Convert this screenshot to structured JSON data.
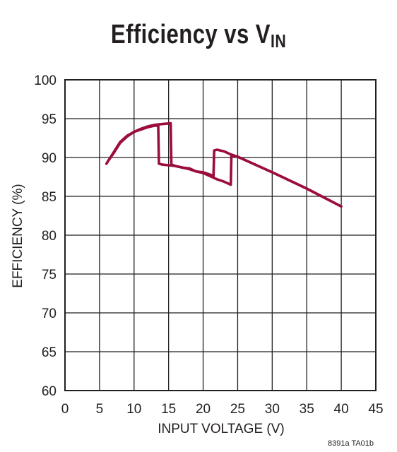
{
  "title_main": "Efficiency vs V",
  "title_subscript": "IN",
  "figure_code": "8391a TA01b",
  "colors": {
    "series": "#9b0d3a",
    "grid": "#231f20",
    "text": "#231f20"
  },
  "chart_data": {
    "type": "line",
    "title": "Efficiency vs VIN",
    "xlabel": "INPUT VOLTAGE (V)",
    "ylabel": "EFFICIENCY (%)",
    "xlim": [
      0,
      45
    ],
    "ylim": [
      60,
      100
    ],
    "xticks": [
      0,
      5,
      10,
      15,
      20,
      25,
      30,
      35,
      40,
      45
    ],
    "yticks": [
      60,
      65,
      70,
      75,
      80,
      85,
      90,
      95,
      100
    ],
    "grid": true,
    "series": [
      {
        "points": [
          [
            6,
            89.2
          ],
          [
            7,
            90.6
          ],
          [
            8,
            92
          ],
          [
            9,
            92.8
          ],
          [
            10,
            93.3
          ],
          [
            11,
            93.6
          ],
          [
            12,
            93.9
          ],
          [
            13,
            94.1
          ],
          [
            13.5,
            94.1
          ],
          [
            13.6,
            89.2
          ],
          [
            14,
            89.1
          ],
          [
            15,
            89
          ],
          [
            16,
            88.9
          ],
          [
            17,
            88.7
          ],
          [
            18,
            88.6
          ],
          [
            19,
            88.2
          ],
          [
            20,
            88.1
          ],
          [
            21,
            87.8
          ],
          [
            21.5,
            87.6
          ],
          [
            21.6,
            90.9
          ],
          [
            22,
            91
          ],
          [
            23,
            90.8
          ],
          [
            24,
            90.4
          ],
          [
            25,
            90.1
          ],
          [
            30,
            88.1
          ],
          [
            35,
            86
          ],
          [
            40,
            83.7
          ]
        ]
      },
      {
        "points": [
          [
            6.2,
            89.5
          ],
          [
            7,
            90.5
          ],
          [
            8,
            91.9
          ],
          [
            9,
            92.7
          ],
          [
            10,
            93.3
          ],
          [
            11,
            93.7
          ],
          [
            12,
            94
          ],
          [
            13,
            94.2
          ],
          [
            14,
            94.3
          ],
          [
            15.3,
            94.4
          ],
          [
            15.4,
            89.1
          ],
          [
            16,
            88.9
          ],
          [
            17,
            88.7
          ],
          [
            18,
            88.5
          ],
          [
            19,
            88.2
          ],
          [
            20,
            88
          ],
          [
            21,
            87.6
          ],
          [
            22,
            87.2
          ],
          [
            23,
            86.9
          ],
          [
            24,
            86.5
          ],
          [
            24.1,
            90.3
          ],
          [
            25,
            90.1
          ],
          [
            30,
            88.1
          ],
          [
            35,
            86
          ],
          [
            40,
            83.7
          ]
        ]
      }
    ]
  }
}
